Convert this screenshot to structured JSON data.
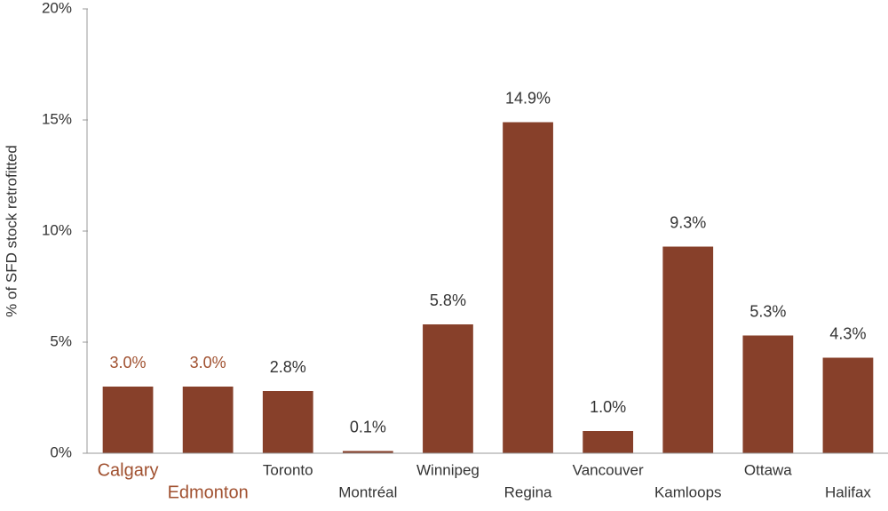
{
  "chart_data": {
    "type": "bar",
    "y_label": "% of SFD stock retrofitted",
    "categories": [
      "Calgary",
      "Edmonton",
      "Toronto",
      "Montréal",
      "Winnipeg",
      "Regina",
      "Vancouver",
      "Kamloops",
      "Ottawa",
      "Halifax"
    ],
    "values": [
      3.0,
      3.0,
      2.8,
      0.1,
      5.8,
      14.9,
      1.0,
      9.3,
      5.3,
      4.3
    ],
    "value_labels": [
      "3.0%",
      "3.0%",
      "2.8%",
      "0.1%",
      "5.8%",
      "14.9%",
      "1.0%",
      "9.3%",
      "5.3%",
      "4.3%"
    ],
    "color": "#87402a",
    "label_colors": [
      "#a0502f",
      "#a0502f",
      "#333333",
      "#333333",
      "#333333",
      "#333333",
      "#333333",
      "#333333",
      "#333333",
      "#333333"
    ],
    "ylim": [
      0,
      20
    ],
    "yticks": [
      {
        "value": 0,
        "label": "0%"
      },
      {
        "value": 5,
        "label": "5%"
      },
      {
        "value": 10,
        "label": "10%"
      },
      {
        "value": 15,
        "label": "15%"
      },
      {
        "value": 20,
        "label": "20%"
      }
    ],
    "grid": false
  }
}
